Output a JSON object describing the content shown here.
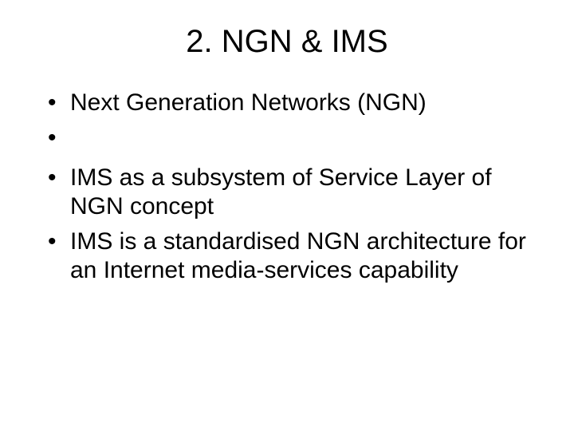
{
  "slide": {
    "title": "2. NGN & IMS",
    "bullets": [
      "Next Generation Networks (NGN)",
      "IMS as a subsystem of Service Layer of NGN concept",
      "IMS is a standardised NGN architecture for an Internet media-services capability"
    ],
    "title_fontsize": 40,
    "body_fontsize": 30,
    "text_color": "#000000",
    "background_color": "#ffffff",
    "font_family": "Arial"
  }
}
